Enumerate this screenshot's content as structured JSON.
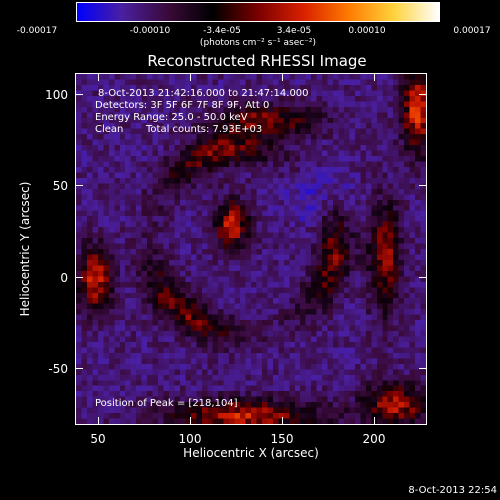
{
  "colorbar": {
    "ticks": [
      "-0.00017",
      "-0.00010",
      "-3.4e-05",
      "3.4e-05",
      "0.00010",
      "0.00017"
    ],
    "units": "(photons cm⁻² s⁻¹ asec⁻²)",
    "colors": [
      "#0000ff",
      "#4a1fa0",
      "#3a0a3a",
      "#000000",
      "#7a0000",
      "#d92000",
      "#ff7a00",
      "#ffd23c",
      "#ffffff"
    ]
  },
  "title": "Reconstructed RHESSI Image",
  "info": {
    "time_range": "8-Oct-2013 21:42:16.000 to 21:47:14.000",
    "detectors": "Detectors: 3F 5F 6F 7F 8F 9F, Att 0",
    "energy_range": "Energy Range: 25.0 - 50.0 keV",
    "algorithm": "Clean",
    "total_counts": "Total counts: 7.93E+03",
    "peak": "Position of Peak = [218,104]"
  },
  "axes": {
    "xlabel": "Heliocentric X (arcsec)",
    "ylabel": "Heliocentric Y (arcsec)",
    "xlim": [
      38,
      230
    ],
    "ylim": [
      -83,
      109
    ],
    "xticks": [
      50,
      100,
      150,
      200
    ],
    "yticks": [
      100,
      50,
      0,
      -50
    ]
  },
  "timestamp": "8-Oct-2013 22:54"
}
